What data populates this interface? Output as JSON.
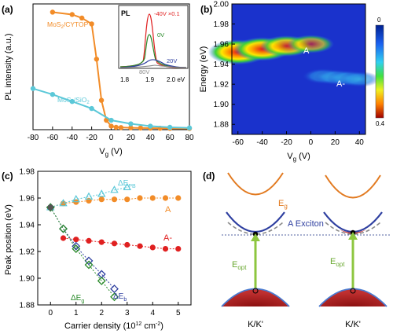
{
  "chart_data": [
    {
      "panel": "(a)",
      "type": "line",
      "xlabel": "V_g (V)",
      "ylabel": "PL intensity (a.u.)",
      "xlim": [
        -80,
        80
      ],
      "x_ticks": [
        -80,
        -60,
        -40,
        -20,
        0,
        20,
        40,
        60,
        80
      ],
      "series": [
        {
          "name": "MoS2/CYTOP",
          "color": "#f28c28",
          "x": [
            -60,
            -40,
            -30,
            -20,
            -15,
            -10,
            -5,
            0,
            5,
            10,
            20,
            30,
            40,
            50,
            60,
            80
          ],
          "y": [
            100,
            98,
            95,
            90,
            60,
            25,
            8,
            3,
            2,
            1.8,
            1.6,
            1.4,
            1.3,
            1.2,
            1.1,
            1.0
          ]
        },
        {
          "name": "MoS2/SiO2",
          "color": "#5bc8d8",
          "x": [
            -80,
            -60,
            -40,
            -20,
            0,
            20,
            40,
            60,
            80
          ],
          "y": [
            35,
            30,
            24,
            18,
            8,
            5,
            3,
            2,
            1.5
          ]
        }
      ],
      "inset": {
        "title": "PL",
        "x_ticks": [
          "1.8",
          "1.9",
          "2.0 eV"
        ],
        "curves": [
          {
            "label": "-40V ×0.1",
            "color": "#e02020"
          },
          {
            "label": "0V",
            "color": "#2a8a2a"
          },
          {
            "label": "20V",
            "color": "#2e3fa0"
          },
          {
            "label": "80V",
            "color": "#8a8a8a"
          }
        ]
      }
    },
    {
      "panel": "(b)",
      "type": "heatmap",
      "xlabel": "V_g (V)",
      "ylabel": "Energy (eV)",
      "xlim": [
        -65,
        45
      ],
      "ylim": [
        1.87,
        2.0
      ],
      "x_ticks": [
        -60,
        -40,
        -20,
        0,
        20,
        40
      ],
      "y_ticks": [
        "1.88",
        "1.90",
        "1.92",
        "1.94",
        "1.96",
        "1.98",
        "2.00"
      ],
      "colorbar": {
        "max": "0",
        "min": "0.4"
      },
      "annotations": [
        "A",
        "A-"
      ],
      "peaks": [
        {
          "name": "A",
          "x": [
            -60,
            -40,
            -20,
            0
          ],
          "energy": [
            1.952,
            1.955,
            1.958,
            1.96
          ],
          "intensity": [
            1.0,
            0.85,
            0.6,
            0.3
          ]
        },
        {
          "name": "A-",
          "x": [
            10,
            20,
            30,
            40
          ],
          "energy": [
            1.928,
            1.927,
            1.926,
            1.925
          ],
          "intensity": [
            0.25,
            0.3,
            0.32,
            0.33
          ]
        }
      ]
    },
    {
      "panel": "(c)",
      "type": "scatter",
      "xlabel": "Carrier density (10^12 cm^-2)",
      "ylabel": "Peak position (eV)",
      "xlim": [
        -0.5,
        5.5
      ],
      "ylim": [
        1.88,
        1.98
      ],
      "x_ticks": [
        0,
        1,
        2,
        3,
        4,
        5
      ],
      "y_ticks": [
        "1.88",
        "1.90",
        "1.92",
        "1.94",
        "1.96",
        "1.98"
      ],
      "series": [
        {
          "name": "A",
          "color": "#f28c28",
          "marker": "circle",
          "x": [
            0,
            0.5,
            1.0,
            1.5,
            2.0,
            2.5,
            3.0,
            3.5,
            4.0,
            4.5,
            5.0
          ],
          "y": [
            1.953,
            1.956,
            1.957,
            1.958,
            1.959,
            1.959,
            1.959,
            1.96,
            1.96,
            1.96,
            1.96
          ]
        },
        {
          "name": "ΔE_PB",
          "color": "#5bc8d8",
          "marker": "triangle",
          "x": [
            0,
            0.5,
            1.0,
            1.5,
            2.0,
            2.5,
            3.0
          ],
          "y": [
            1.953,
            1.956,
            1.959,
            1.961,
            1.963,
            1.966,
            1.968
          ]
        },
        {
          "name": "A-",
          "color": "#e02020",
          "marker": "circle",
          "x": [
            0.5,
            1.0,
            1.5,
            2.0,
            2.5,
            3.0,
            3.5,
            4.0,
            4.5,
            5.0
          ],
          "y": [
            1.93,
            1.929,
            1.928,
            1.927,
            1.926,
            1.925,
            1.924,
            1.923,
            1.922,
            1.922
          ]
        },
        {
          "name": "ΔE_b",
          "color": "#2e3fa0",
          "marker": "diamond",
          "x": [
            0,
            0.5,
            1.0,
            1.5,
            2.0,
            2.5
          ],
          "y": [
            1.953,
            1.937,
            1.924,
            1.913,
            1.903,
            1.892
          ]
        },
        {
          "name": "ΔE_g",
          "color": "#2a8a2a",
          "marker": "diamond",
          "x": [
            0,
            0.5,
            1.0,
            1.5,
            2.0,
            2.5
          ],
          "y": [
            1.953,
            1.937,
            1.922,
            1.91,
            1.898,
            1.886
          ]
        }
      ],
      "labels": [
        "ΔE_PB",
        "A",
        "A-",
        "ΔE_b",
        "ΔE_g"
      ]
    },
    {
      "panel": "(d)",
      "type": "diagram",
      "labels": {
        "eg": "E_g",
        "exciton": "A Exciton",
        "eopt_left": "E_opt",
        "eopt_right": "E_opt",
        "k_left": "K/K'",
        "k_right": "K/K'"
      }
    }
  ]
}
